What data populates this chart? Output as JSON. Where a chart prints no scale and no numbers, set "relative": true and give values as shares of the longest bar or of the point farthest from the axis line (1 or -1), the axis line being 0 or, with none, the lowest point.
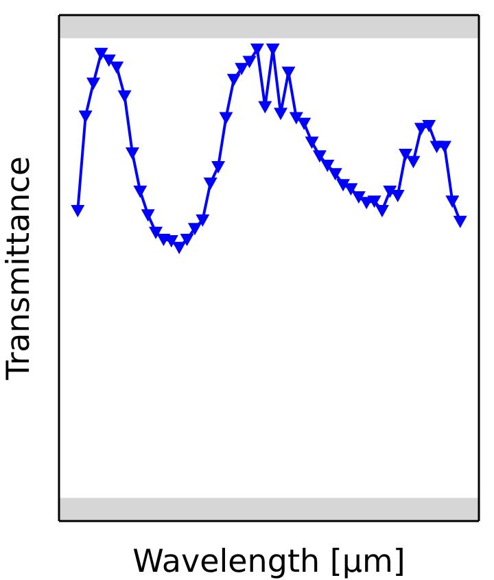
{
  "chart_data": {
    "type": "line",
    "relative": true,
    "xlabel": "Wavelength [µm]",
    "ylabel": "Transmittance",
    "marker": "triangle-down",
    "line_style": "solid",
    "categories": [
      null,
      null,
      null,
      null,
      null,
      null,
      null,
      null,
      null,
      null,
      null,
      null,
      null,
      null,
      null,
      null,
      null,
      null,
      null,
      null,
      null,
      null,
      null,
      null,
      null,
      null,
      null,
      null,
      null,
      null,
      null,
      null,
      null,
      null,
      null,
      null,
      null,
      null,
      null,
      null,
      null,
      null,
      null,
      null,
      null,
      null,
      null,
      null,
      null,
      null
    ],
    "series": [
      {
        "color": "#0000ff",
        "values": [
          0.658,
          0.858,
          0.928,
          0.991,
          0.977,
          0.962,
          0.901,
          0.78,
          0.699,
          0.649,
          0.612,
          0.597,
          0.594,
          0.58,
          0.597,
          0.62,
          0.638,
          0.716,
          0.751,
          0.855,
          0.936,
          0.959,
          0.974,
          1,
          0.878,
          1,
          0.864,
          0.951,
          0.855,
          0.843,
          0.803,
          0.774,
          0.754,
          0.736,
          0.713,
          0.704,
          0.687,
          0.675,
          0.678,
          0.658,
          0.699,
          0.69,
          0.777,
          0.762,
          0.832,
          0.838,
          0.794,
          0.794,
          0.678,
          0.635
        ]
      }
    ],
    "bands": [
      {
        "axis": "y",
        "from": 0,
        "to": 0.049,
        "color": "#d6d6d6"
      },
      {
        "axis": "y",
        "from": 1.023,
        "to": 1.072,
        "color": "#d6d6d6"
      }
    ]
  }
}
